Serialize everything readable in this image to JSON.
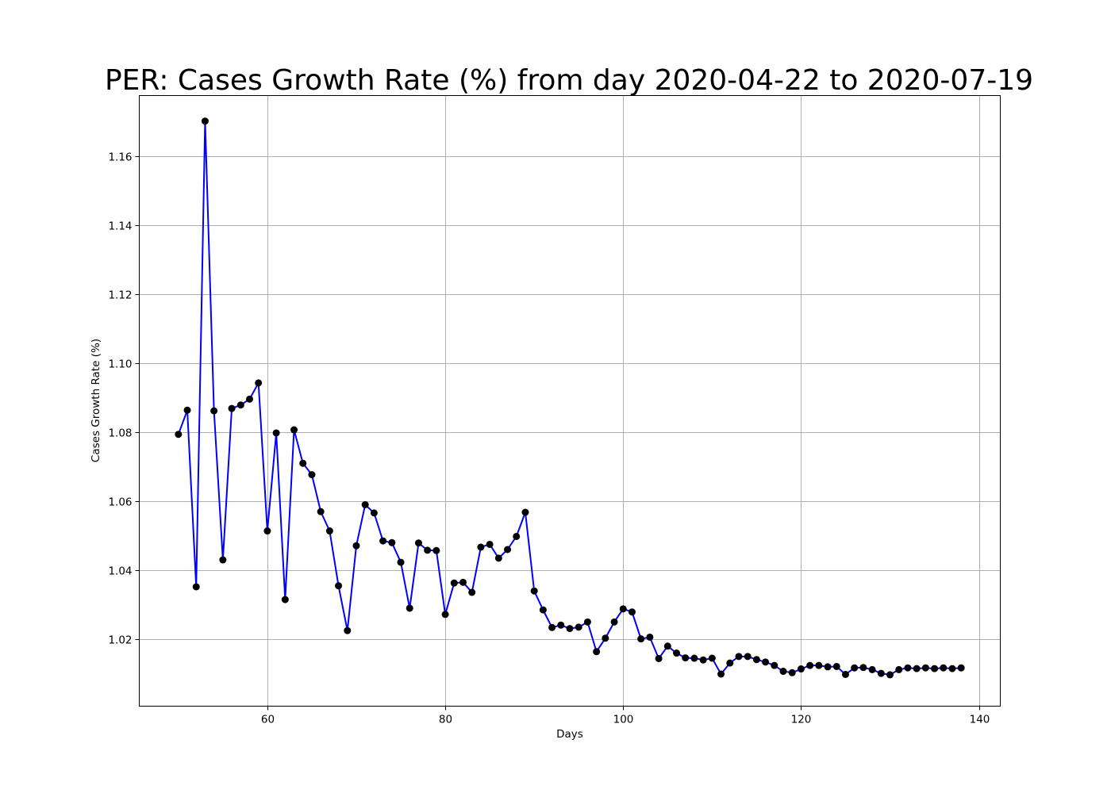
{
  "chart_data": {
    "type": "line",
    "title": "PER: Cases Growth Rate (%) from day 2020-04-22 to 2020-07-19",
    "xlabel": "Days",
    "ylabel": "Cases Growth Rate (%)",
    "xlim": [
      45.6,
      142.4
    ],
    "ylim": [
      1.0005,
      1.1775
    ],
    "xticks": [
      60,
      80,
      100,
      120,
      140
    ],
    "yticks": [
      1.02,
      1.04,
      1.06,
      1.08,
      1.1,
      1.12,
      1.14,
      1.16
    ],
    "grid": true,
    "line_color": "#0000ff",
    "marker_color": "#000000",
    "x": [
      50,
      51,
      52,
      53,
      54,
      55,
      56,
      57,
      58,
      59,
      60,
      61,
      62,
      63,
      64,
      65,
      66,
      67,
      68,
      69,
      70,
      71,
      72,
      73,
      74,
      75,
      76,
      77,
      78,
      79,
      80,
      81,
      82,
      83,
      84,
      85,
      86,
      87,
      88,
      89,
      90,
      91,
      92,
      93,
      94,
      95,
      96,
      97,
      98,
      99,
      100,
      101,
      102,
      103,
      104,
      105,
      106,
      107,
      108,
      109,
      110,
      111,
      112,
      113,
      114,
      115,
      116,
      117,
      118,
      119,
      120,
      121,
      122,
      123,
      124,
      125,
      126,
      127,
      128,
      129,
      130,
      131,
      132,
      133,
      134,
      135,
      136,
      137,
      138
    ],
    "values": [
      1.0793,
      1.0863,
      1.0351,
      1.1701,
      1.0861,
      1.0429,
      1.0868,
      1.0878,
      1.0895,
      1.0942,
      1.0513,
      1.0797,
      1.0314,
      1.0806,
      1.0709,
      1.0676,
      1.0569,
      1.0513,
      1.0354,
      1.0224,
      1.047,
      1.0589,
      1.0565,
      1.0484,
      1.0479,
      1.0422,
      1.0289,
      1.0478,
      1.0457,
      1.0456,
      1.0271,
      1.0362,
      1.0364,
      1.0335,
      1.0466,
      1.0474,
      1.0434,
      1.0459,
      1.0497,
      1.0567,
      1.0339,
      1.0284,
      1.0233,
      1.024,
      1.023,
      1.0234,
      1.0249,
      1.0163,
      1.0202,
      1.0249,
      1.0287,
      1.0278,
      1.02,
      1.0205,
      1.0143,
      1.0179,
      1.0159,
      1.0145,
      1.0144,
      1.0139,
      1.0144,
      1.0098,
      1.013,
      1.0149,
      1.0149,
      1.014,
      1.0133,
      1.0123,
      1.0106,
      1.0102,
      1.0113,
      1.0123,
      1.0123,
      1.0119,
      1.012,
      1.0097,
      1.0116,
      1.0117,
      1.0111,
      1.01,
      1.0096,
      1.0111,
      1.0116,
      1.0114,
      1.0116,
      1.0114,
      1.0116,
      1.0114,
      1.0116
    ]
  }
}
